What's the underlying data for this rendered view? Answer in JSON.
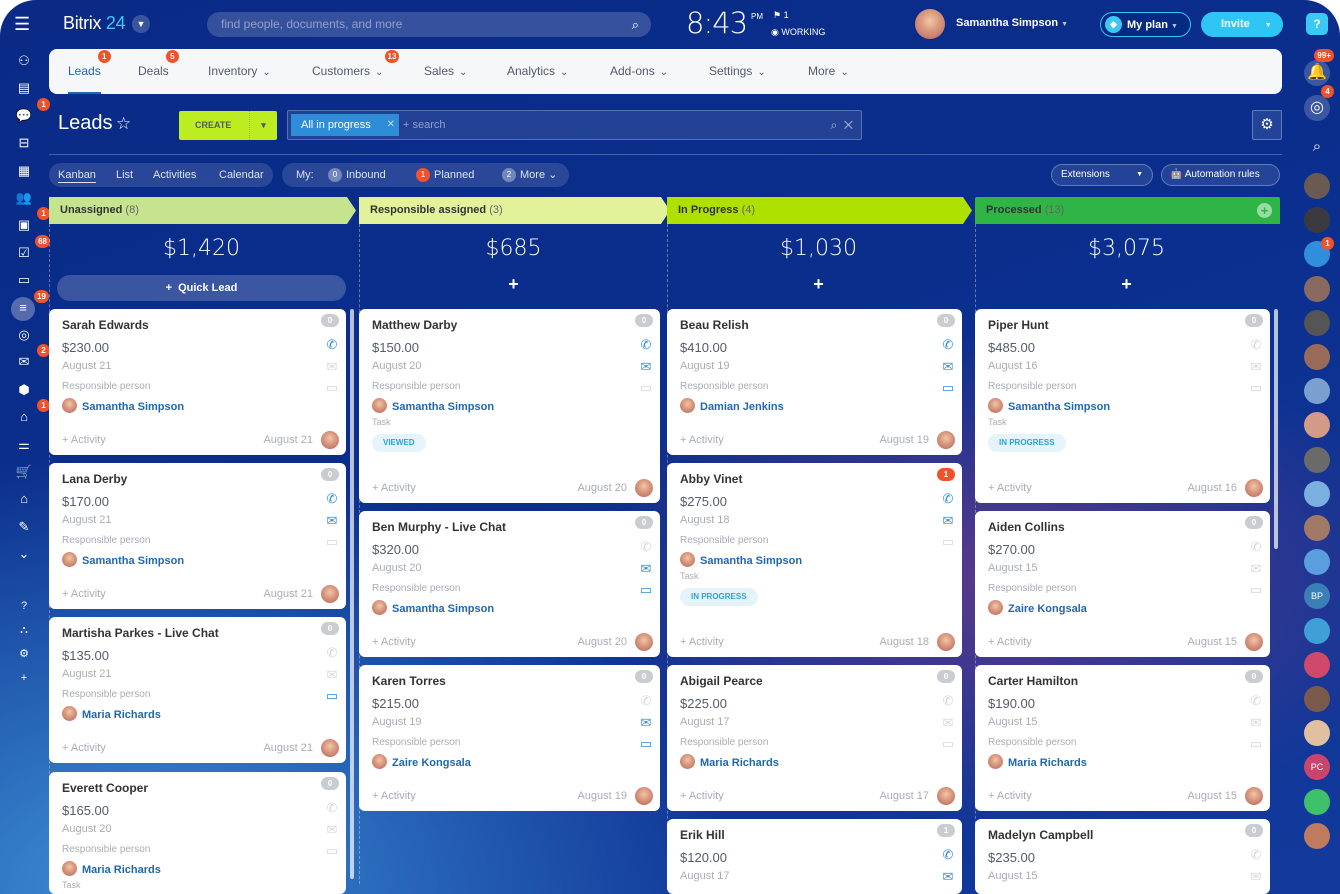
{
  "header": {
    "logo_text": "Bitrix",
    "logo_num": "24",
    "search_placeholder": "find people, documents, and more",
    "time": "8:43",
    "ampm": "PM",
    "flag_count": "1",
    "status": "WORKING",
    "user_name": "Samantha Simpson",
    "plan_label": "My plan",
    "invite_label": "Invite",
    "help_label": "?"
  },
  "left_sidebar": {
    "badges": {
      "chat": "1",
      "calendar": "1",
      "tasks": "68",
      "crm": "19",
      "mail": "2",
      "robots": "1"
    }
  },
  "nav": {
    "items": [
      {
        "label": "Leads",
        "badge": "1",
        "active": true
      },
      {
        "label": "Deals",
        "badge": "5"
      },
      {
        "label": "Inventory",
        "chevron": true
      },
      {
        "label": "Customers",
        "badge": "13",
        "chevron": true
      },
      {
        "label": "Sales",
        "chevron": true
      },
      {
        "label": "Analytics",
        "chevron": true
      },
      {
        "label": "Add-ons",
        "chevron": true
      },
      {
        "label": "Settings",
        "chevron": true
      },
      {
        "label": "More",
        "chevron": true
      }
    ]
  },
  "toolbar": {
    "title": "Leads",
    "create_label": "CREATE",
    "filter_chip": "All in progress",
    "search_placeholder": "+ search"
  },
  "views": {
    "tabs": [
      "Kanban",
      "List",
      "Activities",
      "Calendar"
    ],
    "active": "Kanban",
    "my_label": "My:",
    "counters": [
      {
        "count": "0",
        "label": "Inbound"
      },
      {
        "count": "1",
        "label": "Planned",
        "red": true
      },
      {
        "count": "2",
        "label": "More"
      }
    ],
    "extensions_label": "Extensions",
    "automation_label": "Automation rules"
  },
  "right_sidebar": {
    "notifications_badge": "99+",
    "chats_badge": "4",
    "group_badge": "1",
    "initials": [
      "BP",
      "PC"
    ]
  },
  "columns": [
    {
      "title": "Unassigned",
      "count": "(8)",
      "sum": "$1,420",
      "color": "#c6e38f",
      "quick_lead": "Quick Lead",
      "cards": [
        {
          "name": "Sarah Edwards",
          "amount": "$230.00",
          "date": "August 21",
          "role": "Responsible person",
          "person": "Samantha Simpson",
          "count": "0",
          "phone": true,
          "mail": false,
          "chat": false,
          "activity": "+ Activity",
          "footer_date": "August 21"
        },
        {
          "name": "Lana Derby",
          "amount": "$170.00",
          "date": "August 21",
          "role": "Responsible person",
          "person": "Samantha Simpson",
          "count": "0",
          "phone": true,
          "mail": true,
          "chat": false,
          "activity": "+ Activity",
          "footer_date": "August 21"
        },
        {
          "name": "Martisha Parkes - Live Chat",
          "amount": "$135.00",
          "date": "August 21",
          "role": "Responsible person",
          "person": "Maria Richards",
          "count": "0",
          "phone": false,
          "mail": false,
          "chat": true,
          "activity": "+ Activity",
          "footer_date": "August 21"
        },
        {
          "name": "Everett Cooper",
          "amount": "$165.00",
          "date": "August 20",
          "role": "Responsible person",
          "person": "Maria Richards",
          "count": "0",
          "phone": false,
          "mail": false,
          "chat": false,
          "task_label": "Task"
        }
      ]
    },
    {
      "title": "Responsible assigned",
      "count": "(3)",
      "sum": "$685",
      "color": "#e2f29a",
      "cards": [
        {
          "name": "Matthew Darby",
          "amount": "$150.00",
          "date": "August 20",
          "role": "Responsible person",
          "person": "Samantha Simpson",
          "count": "0",
          "phone": true,
          "mail": true,
          "chat": false,
          "task_label": "Task",
          "task_status": "VIEWED",
          "activity": "+ Activity",
          "footer_date": "August 20"
        },
        {
          "name": "Ben Murphy - Live Chat",
          "amount": "$320.00",
          "date": "August 20",
          "role": "Responsible person",
          "person": "Samantha Simpson",
          "count": "0",
          "phone": false,
          "mail": true,
          "chat": true,
          "activity": "+ Activity",
          "footer_date": "August 20"
        },
        {
          "name": "Karen Torres",
          "amount": "$215.00",
          "date": "August 19",
          "role": "Responsible person",
          "person": "Zaire Kongsala",
          "count": "0",
          "phone": false,
          "mail": true,
          "chat": true,
          "activity": "+ Activity",
          "footer_date": "August 19"
        }
      ]
    },
    {
      "title": "In Progress",
      "count": "(4)",
      "sum": "$1,030",
      "color": "#aee000",
      "cards": [
        {
          "name": "Beau Relish",
          "amount": "$410.00",
          "date": "August 19",
          "role": "Responsible person",
          "person": "Damian Jenkins",
          "count": "0",
          "phone": true,
          "mail": true,
          "chat": true,
          "activity": "+ Activity",
          "footer_date": "August 19"
        },
        {
          "name": "Abby Vinet",
          "amount": "$275.00",
          "date": "August 18",
          "role": "Responsible person",
          "person": "Samantha Simpson",
          "count": "1",
          "count_red": true,
          "phone": true,
          "mail": true,
          "chat": false,
          "task_label": "Task",
          "task_status": "IN PROGRESS",
          "activity": "+ Activity",
          "footer_date": "August 18"
        },
        {
          "name": "Abigail Pearce",
          "amount": "$225.00",
          "date": "August 17",
          "role": "Responsible person",
          "person": "Maria Richards",
          "count": "0",
          "phone": false,
          "mail": false,
          "chat": false,
          "activity": "+ Activity",
          "footer_date": "August 17"
        },
        {
          "name": "Erik Hill",
          "amount": "$120.00",
          "date": "August 17",
          "count": "1",
          "phone": true,
          "mail": true,
          "chat": false
        }
      ]
    },
    {
      "title": "Processed",
      "count": "(13)",
      "sum": "$3,075",
      "color": "#2fb545",
      "cards": [
        {
          "name": "Piper Hunt",
          "amount": "$485.00",
          "date": "August 16",
          "role": "Responsible person",
          "person": "Samantha Simpson",
          "count": "0",
          "phone": false,
          "mail": false,
          "chat": false,
          "task_label": "Task",
          "task_status": "IN PROGRESS",
          "activity": "+ Activity",
          "footer_date": "August 16"
        },
        {
          "name": "Aiden Collins",
          "amount": "$270.00",
          "date": "August 15",
          "role": "Responsible person",
          "person": "Zaire Kongsala",
          "count": "0",
          "phone": false,
          "mail": false,
          "chat": false,
          "activity": "+ Activity",
          "footer_date": "August 15"
        },
        {
          "name": "Carter Hamilton",
          "amount": "$190.00",
          "date": "August 15",
          "role": "Responsible person",
          "person": "Maria Richards",
          "count": "0",
          "phone": false,
          "mail": false,
          "chat": false,
          "activity": "+ Activity",
          "footer_date": "August 15"
        },
        {
          "name": "Madelyn Campbell",
          "amount": "$235.00",
          "date": "August 15",
          "count": "0",
          "phone": false,
          "mail": false,
          "chat": false
        }
      ]
    }
  ]
}
